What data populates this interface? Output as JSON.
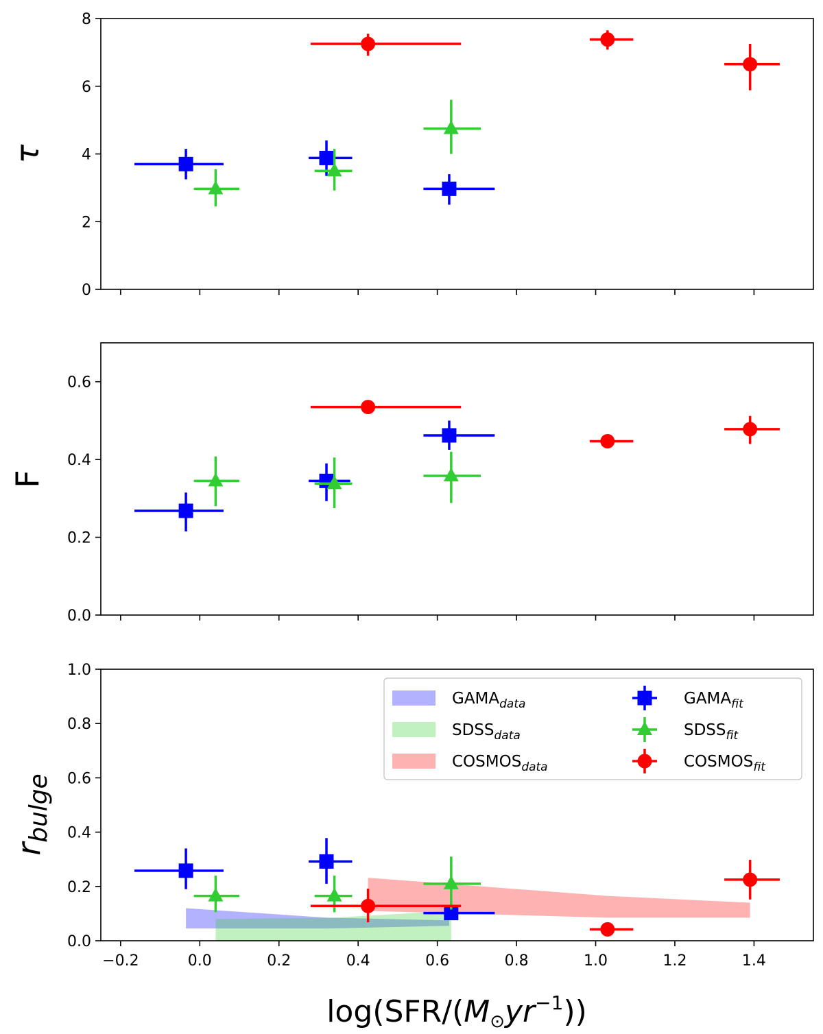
{
  "chart_data": [
    {
      "type": "scatter",
      "panel": "top",
      "ylabel": "τ",
      "xlim": [
        -0.25,
        1.55
      ],
      "ylim": [
        0,
        8
      ],
      "yticks": [
        0,
        2,
        4,
        6,
        8
      ],
      "ytick_labels": [
        "0",
        "2",
        "4",
        "6",
        "8"
      ],
      "series": [
        {
          "name": "GAMA_fit",
          "color": "#0000ff",
          "marker": "square",
          "points": [
            {
              "x": -0.035,
              "y": 3.7,
              "xlo": -0.165,
              "xhi": 0.06,
              "ylo": 3.25,
              "yhi": 4.15
            },
            {
              "x": 0.32,
              "y": 3.88,
              "xlo": 0.275,
              "xhi": 0.385,
              "ylo": 3.35,
              "yhi": 4.4
            },
            {
              "x": 0.63,
              "y": 2.97,
              "xlo": 0.565,
              "xhi": 0.745,
              "ylo": 2.5,
              "yhi": 3.4
            }
          ]
        },
        {
          "name": "SDSS_fit",
          "color": "#32cd32",
          "marker": "triangle",
          "points": [
            {
              "x": 0.04,
              "y": 2.97,
              "xlo": -0.015,
              "xhi": 0.1,
              "ylo": 2.45,
              "yhi": 3.55
            },
            {
              "x": 0.34,
              "y": 3.5,
              "xlo": 0.29,
              "xhi": 0.385,
              "ylo": 2.92,
              "yhi": 4.15
            },
            {
              "x": 0.635,
              "y": 4.75,
              "xlo": 0.565,
              "xhi": 0.71,
              "ylo": 4.0,
              "yhi": 5.6
            }
          ]
        },
        {
          "name": "COSMOS_fit",
          "color": "#ff0000",
          "marker": "circle",
          "points": [
            {
              "x": 0.425,
              "y": 7.25,
              "xlo": 0.28,
              "xhi": 0.66,
              "ylo": 6.9,
              "yhi": 7.55
            },
            {
              "x": 1.03,
              "y": 7.38,
              "xlo": 0.985,
              "xhi": 1.095,
              "ylo": 7.08,
              "yhi": 7.65
            },
            {
              "x": 1.39,
              "y": 6.65,
              "xlo": 1.325,
              "xhi": 1.465,
              "ylo": 5.88,
              "yhi": 7.25
            }
          ]
        }
      ]
    },
    {
      "type": "scatter",
      "panel": "middle",
      "ylabel": "F",
      "xlim": [
        -0.25,
        1.55
      ],
      "ylim": [
        0,
        0.7
      ],
      "yticks": [
        0,
        0.2,
        0.4,
        0.6
      ],
      "ytick_labels": [
        "0.0",
        "0.2",
        "0.4",
        "0.6"
      ],
      "series": [
        {
          "name": "GAMA_fit",
          "color": "#0000ff",
          "marker": "square",
          "points": [
            {
              "x": -0.035,
              "y": 0.268,
              "xlo": -0.165,
              "xhi": 0.06,
              "ylo": 0.215,
              "yhi": 0.315
            },
            {
              "x": 0.32,
              "y": 0.345,
              "xlo": 0.275,
              "xhi": 0.38,
              "ylo": 0.293,
              "yhi": 0.39
            },
            {
              "x": 0.63,
              "y": 0.462,
              "xlo": 0.565,
              "xhi": 0.745,
              "ylo": 0.425,
              "yhi": 0.5
            }
          ]
        },
        {
          "name": "SDSS_fit",
          "color": "#32cd32",
          "marker": "triangle",
          "points": [
            {
              "x": 0.04,
              "y": 0.345,
              "xlo": -0.015,
              "xhi": 0.1,
              "ylo": 0.28,
              "yhi": 0.408
            },
            {
              "x": 0.34,
              "y": 0.338,
              "xlo": 0.29,
              "xhi": 0.385,
              "ylo": 0.275,
              "yhi": 0.405
            },
            {
              "x": 0.635,
              "y": 0.358,
              "xlo": 0.565,
              "xhi": 0.71,
              "ylo": 0.288,
              "yhi": 0.42
            }
          ]
        },
        {
          "name": "COSMOS_fit",
          "color": "#ff0000",
          "marker": "circle",
          "points": [
            {
              "x": 0.425,
              "y": 0.535,
              "xlo": 0.28,
              "xhi": 0.66,
              "ylo": 0.52,
              "yhi": 0.55
            },
            {
              "x": 1.03,
              "y": 0.447,
              "xlo": 0.985,
              "xhi": 1.095,
              "ylo": 0.438,
              "yhi": 0.455
            },
            {
              "x": 1.39,
              "y": 0.478,
              "xlo": 1.325,
              "xhi": 1.465,
              "ylo": 0.44,
              "yhi": 0.512
            }
          ]
        }
      ]
    },
    {
      "type": "scatter",
      "panel": "bottom",
      "ylabel": "r_bulge",
      "ylabel_base": "r",
      "ylabel_sub": "bulge",
      "xlabel": "log(SFR/(M_⊙yr^-1))",
      "xlim": [
        -0.25,
        1.55
      ],
      "ylim": [
        0,
        1.0
      ],
      "yticks": [
        0,
        0.2,
        0.4,
        0.6,
        0.8,
        1.0
      ],
      "ytick_labels": [
        "0.0",
        "0.2",
        "0.4",
        "0.6",
        "0.8",
        "1.0"
      ],
      "xticks": [
        -0.2,
        0.0,
        0.2,
        0.4,
        0.6,
        0.8,
        1.0,
        1.2,
        1.4
      ],
      "xtick_labels": [
        "−0.2",
        "0.0",
        "0.2",
        "0.4",
        "0.6",
        "0.8",
        "1.0",
        "1.2",
        "1.4"
      ],
      "bands": [
        {
          "name": "GAMA_data",
          "color": "#0000ff",
          "alpha": 0.3,
          "x": [
            -0.035,
            0.32,
            0.63
          ],
          "lower": [
            0.045,
            0.045,
            0.055
          ],
          "upper": [
            0.12,
            0.085,
            0.075
          ]
        },
        {
          "name": "SDSS_data",
          "color": "#32cd32",
          "alpha": 0.3,
          "x": [
            0.04,
            0.34,
            0.635
          ],
          "lower": [
            0.0,
            0.0,
            0.0
          ],
          "upper": [
            0.08,
            0.085,
            0.11
          ]
        },
        {
          "name": "COSMOS_data",
          "color": "#ff0000",
          "alpha": 0.3,
          "x": [
            0.425,
            1.03,
            1.39
          ],
          "lower": [
            0.11,
            0.085,
            0.085
          ],
          "upper": [
            0.232,
            0.165,
            0.14
          ]
        }
      ],
      "series": [
        {
          "name": "GAMA_fit",
          "color": "#0000ff",
          "marker": "square",
          "points": [
            {
              "x": -0.035,
              "y": 0.258,
              "xlo": -0.165,
              "xhi": 0.06,
              "ylo": 0.19,
              "yhi": 0.34
            },
            {
              "x": 0.32,
              "y": 0.292,
              "xlo": 0.275,
              "xhi": 0.385,
              "ylo": 0.21,
              "yhi": 0.378
            },
            {
              "x": 0.635,
              "y": 0.102,
              "xlo": 0.565,
              "xhi": 0.745,
              "ylo": 0.085,
              "yhi": 0.12
            }
          ]
        },
        {
          "name": "SDSS_fit",
          "color": "#32cd32",
          "marker": "triangle",
          "points": [
            {
              "x": 0.04,
              "y": 0.165,
              "xlo": -0.015,
              "xhi": 0.1,
              "ylo": 0.105,
              "yhi": 0.24
            },
            {
              "x": 0.34,
              "y": 0.165,
              "xlo": 0.29,
              "xhi": 0.385,
              "ylo": 0.105,
              "yhi": 0.24
            },
            {
              "x": 0.635,
              "y": 0.21,
              "xlo": 0.565,
              "xhi": 0.71,
              "ylo": 0.115,
              "yhi": 0.31
            }
          ]
        },
        {
          "name": "COSMOS_fit",
          "color": "#ff0000",
          "marker": "circle",
          "points": [
            {
              "x": 0.425,
              "y": 0.128,
              "xlo": 0.28,
              "xhi": 0.66,
              "ylo": 0.068,
              "yhi": 0.192
            },
            {
              "x": 1.03,
              "y": 0.042,
              "xlo": 0.985,
              "xhi": 1.095,
              "ylo": 0.035,
              "yhi": 0.05
            },
            {
              "x": 1.39,
              "y": 0.225,
              "xlo": 1.325,
              "xhi": 1.465,
              "ylo": 0.152,
              "yhi": 0.298
            }
          ]
        }
      ],
      "legend": {
        "placement": "upper-right",
        "columns": 2,
        "entries": [
          {
            "kind": "band",
            "base": "GAMA",
            "sub": "data",
            "color": "#0000ff"
          },
          {
            "kind": "band",
            "base": "SDSS",
            "sub": "data",
            "color": "#32cd32"
          },
          {
            "kind": "band",
            "base": "COSMOS",
            "sub": "data",
            "color": "#ff0000"
          },
          {
            "kind": "marker",
            "marker": "square",
            "base": "GAMA",
            "sub": "fit",
            "color": "#0000ff"
          },
          {
            "kind": "marker",
            "marker": "triangle",
            "base": "SDSS",
            "sub": "fit",
            "color": "#32cd32"
          },
          {
            "kind": "marker",
            "marker": "circle",
            "base": "COSMOS",
            "sub": "fit",
            "color": "#ff0000"
          }
        ]
      }
    }
  ],
  "x_axis_title": {
    "prefix": "log(SFR/(",
    "m": "M",
    "sun": "⊙",
    "yr": "yr",
    "exp": "−1",
    "suffix": "))"
  }
}
